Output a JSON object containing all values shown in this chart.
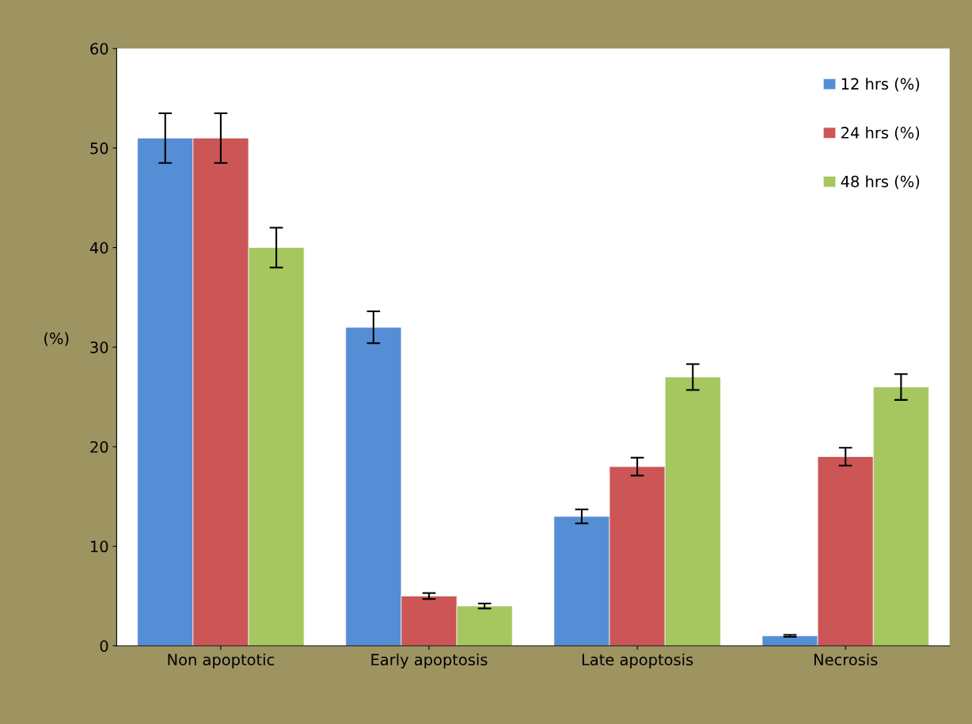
{
  "chart_data": {
    "type": "bar",
    "ylabel": "(%)",
    "categories": [
      "Non apoptotic",
      "Early apoptosis",
      "Late apoptosis",
      "Necrosis"
    ],
    "series": [
      {
        "name": "12 hrs (%)",
        "color": "#558ed5",
        "values": [
          51,
          32,
          13,
          1
        ],
        "errors": [
          2.5,
          1.6,
          0.7,
          0.1
        ]
      },
      {
        "name": "24 hrs (%)",
        "color": "#cc5555",
        "values": [
          51,
          5,
          18,
          19
        ],
        "errors": [
          2.5,
          0.3,
          0.9,
          0.9
        ]
      },
      {
        "name": "48 hrs (%)",
        "color": "#a6c660",
        "values": [
          40,
          4,
          27,
          26
        ],
        "errors": [
          2,
          0.25,
          1.3,
          1.3
        ]
      }
    ],
    "ylim": [
      0,
      60
    ],
    "yticks": [
      0,
      10,
      20,
      30,
      40,
      50,
      60
    ],
    "grid": false,
    "legend": "top right"
  }
}
